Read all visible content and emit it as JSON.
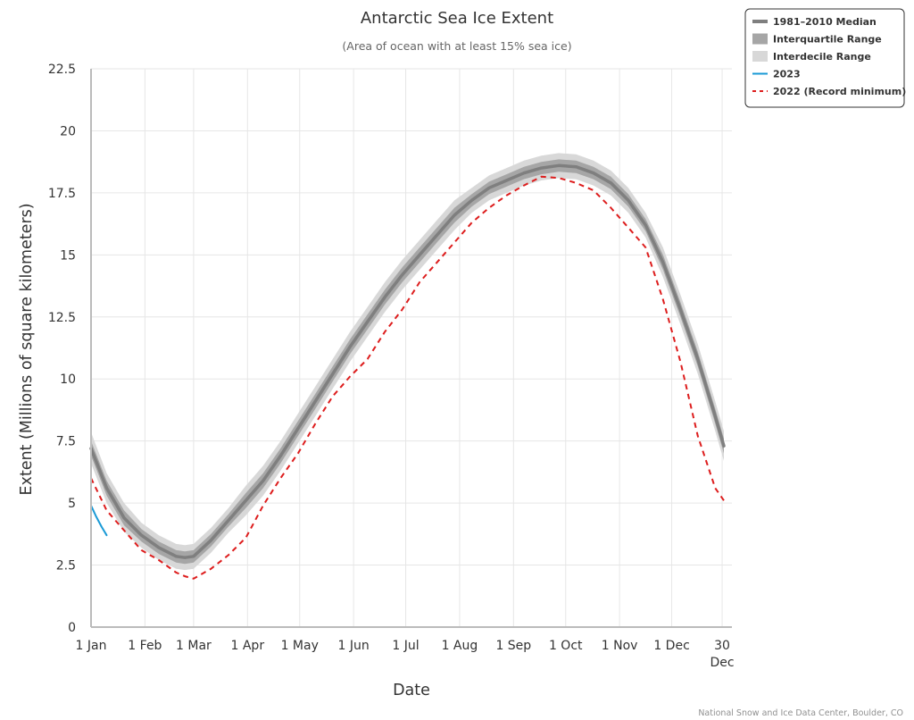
{
  "chart_data": {
    "type": "line",
    "title": "Antarctic Sea Ice Extent",
    "subtitle": "(Area of ocean with at least 15% sea ice)",
    "xlabel": "Date",
    "ylabel": "Extent (Millions of square kilometers)",
    "credit": "National Snow and Ice Data Center, Boulder, CO",
    "ylim": [
      0,
      22.5
    ],
    "yticks": [
      "0",
      "2.5",
      "5",
      "7.5",
      "10",
      "12.5",
      "15",
      "17.5",
      "20",
      "22.5"
    ],
    "xlim": [
      1,
      365
    ],
    "xticks": [
      {
        "day": 1,
        "label": "1 Jan"
      },
      {
        "day": 32,
        "label": "1 Feb"
      },
      {
        "day": 60,
        "label": "1 Mar"
      },
      {
        "day": 91,
        "label": "1 Apr"
      },
      {
        "day": 121,
        "label": "1 May"
      },
      {
        "day": 152,
        "label": "1 Jun"
      },
      {
        "day": 182,
        "label": "1 Jul"
      },
      {
        "day": 213,
        "label": "1 Aug"
      },
      {
        "day": 244,
        "label": "1 Sep"
      },
      {
        "day": 274,
        "label": "1 Oct"
      },
      {
        "day": 305,
        "label": "1 Nov"
      },
      {
        "day": 335,
        "label": "1 Dec"
      },
      {
        "day": 364,
        "label": "30",
        "label2": "Dec"
      }
    ],
    "grid": true,
    "legend_position": "top-right",
    "x": [
      1,
      10,
      20,
      30,
      40,
      50,
      55,
      60,
      70,
      80,
      90,
      100,
      110,
      120,
      130,
      140,
      150,
      160,
      170,
      180,
      190,
      200,
      210,
      220,
      230,
      240,
      250,
      260,
      270,
      280,
      290,
      300,
      310,
      320,
      330,
      340,
      350,
      360,
      365
    ],
    "series": [
      {
        "name": "1981-2010 Median",
        "color": "#7f7f7f",
        "values": [
          7.2,
          5.6,
          4.4,
          3.7,
          3.2,
          2.85,
          2.8,
          2.85,
          3.5,
          4.3,
          5.1,
          5.9,
          6.9,
          8.0,
          9.1,
          10.2,
          11.3,
          12.3,
          13.3,
          14.2,
          15.0,
          15.8,
          16.6,
          17.2,
          17.7,
          18.0,
          18.3,
          18.5,
          18.6,
          18.55,
          18.3,
          17.9,
          17.2,
          16.2,
          14.7,
          12.8,
          10.8,
          8.5,
          7.3
        ]
      },
      {
        "name": "2022 (Record minimum)",
        "color": "#dd1d1d",
        "values": [
          6.0,
          4.7,
          3.9,
          3.1,
          2.7,
          2.2,
          2.05,
          1.95,
          2.35,
          2.9,
          3.6,
          4.9,
          6.0,
          7.0,
          8.2,
          9.3,
          10.1,
          10.8,
          11.9,
          12.8,
          13.9,
          14.7,
          15.5,
          16.3,
          16.9,
          17.4,
          17.8,
          18.15,
          18.1,
          17.9,
          17.6,
          16.9,
          16.1,
          15.3,
          13.2,
          10.7,
          7.7,
          5.6,
          5.1
        ]
      },
      {
        "name": "2023",
        "color": "#1a9ad6",
        "x": [
          1,
          4,
          7,
          10
        ],
        "values": [
          4.9,
          4.45,
          4.05,
          3.7
        ]
      }
    ],
    "bands": [
      {
        "name": "Interquartile Range",
        "color": "#a6a6a6",
        "lower": [
          6.9,
          5.3,
          4.1,
          3.45,
          2.95,
          2.6,
          2.55,
          2.6,
          3.25,
          4.05,
          4.8,
          5.6,
          6.6,
          7.7,
          8.8,
          9.9,
          11.0,
          12.0,
          13.0,
          13.9,
          14.7,
          15.5,
          16.3,
          16.95,
          17.45,
          17.75,
          18.05,
          18.25,
          18.35,
          18.3,
          18.05,
          17.65,
          16.95,
          15.95,
          14.4,
          12.5,
          10.5,
          8.2,
          7.0
        ],
        "upper": [
          7.5,
          5.9,
          4.7,
          3.95,
          3.45,
          3.1,
          3.05,
          3.1,
          3.75,
          4.55,
          5.4,
          6.2,
          7.2,
          8.3,
          9.4,
          10.5,
          11.6,
          12.6,
          13.6,
          14.5,
          15.3,
          16.1,
          16.9,
          17.45,
          17.95,
          18.25,
          18.55,
          18.75,
          18.85,
          18.8,
          18.55,
          18.15,
          17.45,
          16.45,
          15.0,
          13.1,
          11.1,
          8.8,
          7.6
        ]
      },
      {
        "name": "Interdecile Range",
        "color": "#d8d8d8",
        "lower": [
          6.6,
          5.0,
          3.85,
          3.2,
          2.7,
          2.35,
          2.3,
          2.35,
          3.0,
          3.8,
          4.5,
          5.3,
          6.3,
          7.4,
          8.5,
          9.6,
          10.7,
          11.7,
          12.7,
          13.6,
          14.4,
          15.2,
          16.0,
          16.7,
          17.2,
          17.5,
          17.8,
          18.0,
          18.1,
          18.05,
          17.8,
          17.4,
          16.7,
          15.7,
          14.1,
          12.2,
          10.2,
          7.9,
          6.7
        ],
        "upper": [
          7.85,
          6.2,
          5.0,
          4.2,
          3.7,
          3.35,
          3.3,
          3.35,
          4.0,
          4.8,
          5.7,
          6.5,
          7.5,
          8.6,
          9.7,
          10.8,
          11.9,
          12.9,
          13.9,
          14.8,
          15.6,
          16.4,
          17.2,
          17.7,
          18.2,
          18.5,
          18.8,
          19.0,
          19.1,
          19.05,
          18.8,
          18.4,
          17.7,
          16.7,
          15.3,
          13.4,
          11.4,
          9.1,
          7.9
        ]
      }
    ],
    "legend": [
      {
        "label": "1981–2010 Median",
        "kind": "line",
        "color": "#7f7f7f"
      },
      {
        "label": "Interquartile Range",
        "kind": "box",
        "color": "#a6a6a6"
      },
      {
        "label": "Interdecile Range",
        "kind": "box",
        "color": "#d8d8d8"
      },
      {
        "label": "2023",
        "kind": "line",
        "color": "#1a9ad6"
      },
      {
        "label": "2022 (Record minimum)",
        "kind": "dash",
        "color": "#dd1d1d"
      }
    ]
  }
}
